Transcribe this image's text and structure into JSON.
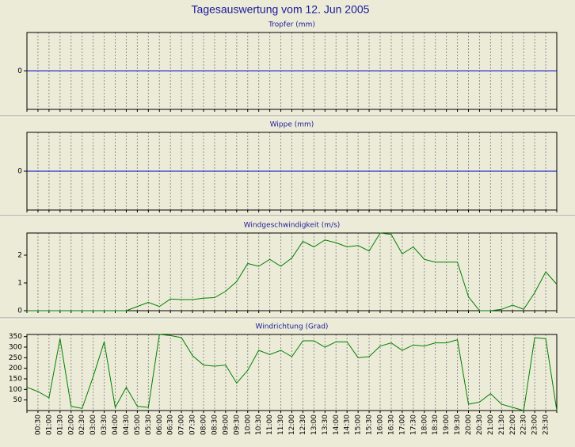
{
  "title": "Tagesauswertung vom 12. Jun 2005",
  "chart_data": [
    {
      "type": "line",
      "title": "Tropfer (mm)",
      "color": "#0000c8",
      "ylim": [
        -1,
        1
      ],
      "yticks": [
        0
      ],
      "values": [
        0,
        0,
        0,
        0,
        0,
        0,
        0,
        0,
        0,
        0,
        0,
        0,
        0,
        0,
        0,
        0,
        0,
        0,
        0,
        0,
        0,
        0,
        0,
        0,
        0,
        0,
        0,
        0,
        0,
        0,
        0,
        0,
        0,
        0,
        0,
        0,
        0,
        0,
        0,
        0,
        0,
        0,
        0,
        0,
        0,
        0,
        0,
        0,
        0
      ]
    },
    {
      "type": "line",
      "title": "Wippe (mm)",
      "color": "#0000c8",
      "ylim": [
        -1,
        1
      ],
      "yticks": [
        0
      ],
      "values": [
        0,
        0,
        0,
        0,
        0,
        0,
        0,
        0,
        0,
        0,
        0,
        0,
        0,
        0,
        0,
        0,
        0,
        0,
        0,
        0,
        0,
        0,
        0,
        0,
        0,
        0,
        0,
        0,
        0,
        0,
        0,
        0,
        0,
        0,
        0,
        0,
        0,
        0,
        0,
        0,
        0,
        0,
        0,
        0,
        0,
        0,
        0,
        0,
        0
      ]
    },
    {
      "type": "line",
      "title": "Windgeschwindigkeit (m/s)",
      "color": "#008000",
      "ylim": [
        0,
        2.8
      ],
      "yticks": [
        0,
        1,
        2
      ],
      "values": [
        0,
        0,
        0,
        0,
        0,
        0,
        0,
        0,
        0,
        0,
        0.15,
        0.3,
        0.15,
        0.42,
        0.4,
        0.4,
        0.45,
        0.47,
        0.7,
        1.05,
        1.7,
        1.6,
        1.85,
        1.6,
        1.9,
        2.5,
        2.3,
        2.55,
        2.45,
        2.3,
        2.35,
        2.15,
        2.8,
        2.75,
        2.05,
        2.3,
        1.85,
        1.75,
        1.75,
        1.75,
        0.5,
        0,
        0,
        0.05,
        0.2,
        0.05,
        0.65,
        1.4,
        0.95
      ]
    },
    {
      "type": "line",
      "title": "Windrichtung (Grad)",
      "color": "#008000",
      "ylim": [
        0,
        360
      ],
      "yticks": [
        50,
        100,
        150,
        200,
        250,
        300,
        350
      ],
      "values": [
        110,
        90,
        60,
        340,
        20,
        10,
        160,
        325,
        15,
        110,
        20,
        15,
        360,
        355,
        345,
        260,
        215,
        210,
        215,
        130,
        190,
        285,
        265,
        285,
        255,
        330,
        330,
        300,
        325,
        325,
        250,
        255,
        305,
        320,
        285,
        310,
        305,
        320,
        320,
        335,
        30,
        40,
        80,
        30,
        15,
        0,
        345,
        340,
        0
      ],
      "categories": [
        null,
        "00:30",
        "01:00",
        "01:30",
        "02:00",
        "02:30",
        "03:00",
        "03:30",
        "04:00",
        "04:30",
        "05:00",
        "05:30",
        "06:00",
        "06:30",
        "07:00",
        "07:30",
        "08:00",
        "08:30",
        "09:00",
        "09:30",
        "10:00",
        "10:30",
        "11:00",
        "11:30",
        "12:00",
        "12:30",
        "13:00",
        "13:30",
        "14:00",
        "14:30",
        "15:00",
        "15:30",
        "16:00",
        "16:30",
        "17:00",
        "17:30",
        "18:00",
        "18:30",
        "19:00",
        "19:30",
        "20:00",
        "20:30",
        "21:00",
        "21:30",
        "22:00",
        "22:30",
        "23:00",
        "23:30",
        null
      ]
    }
  ]
}
